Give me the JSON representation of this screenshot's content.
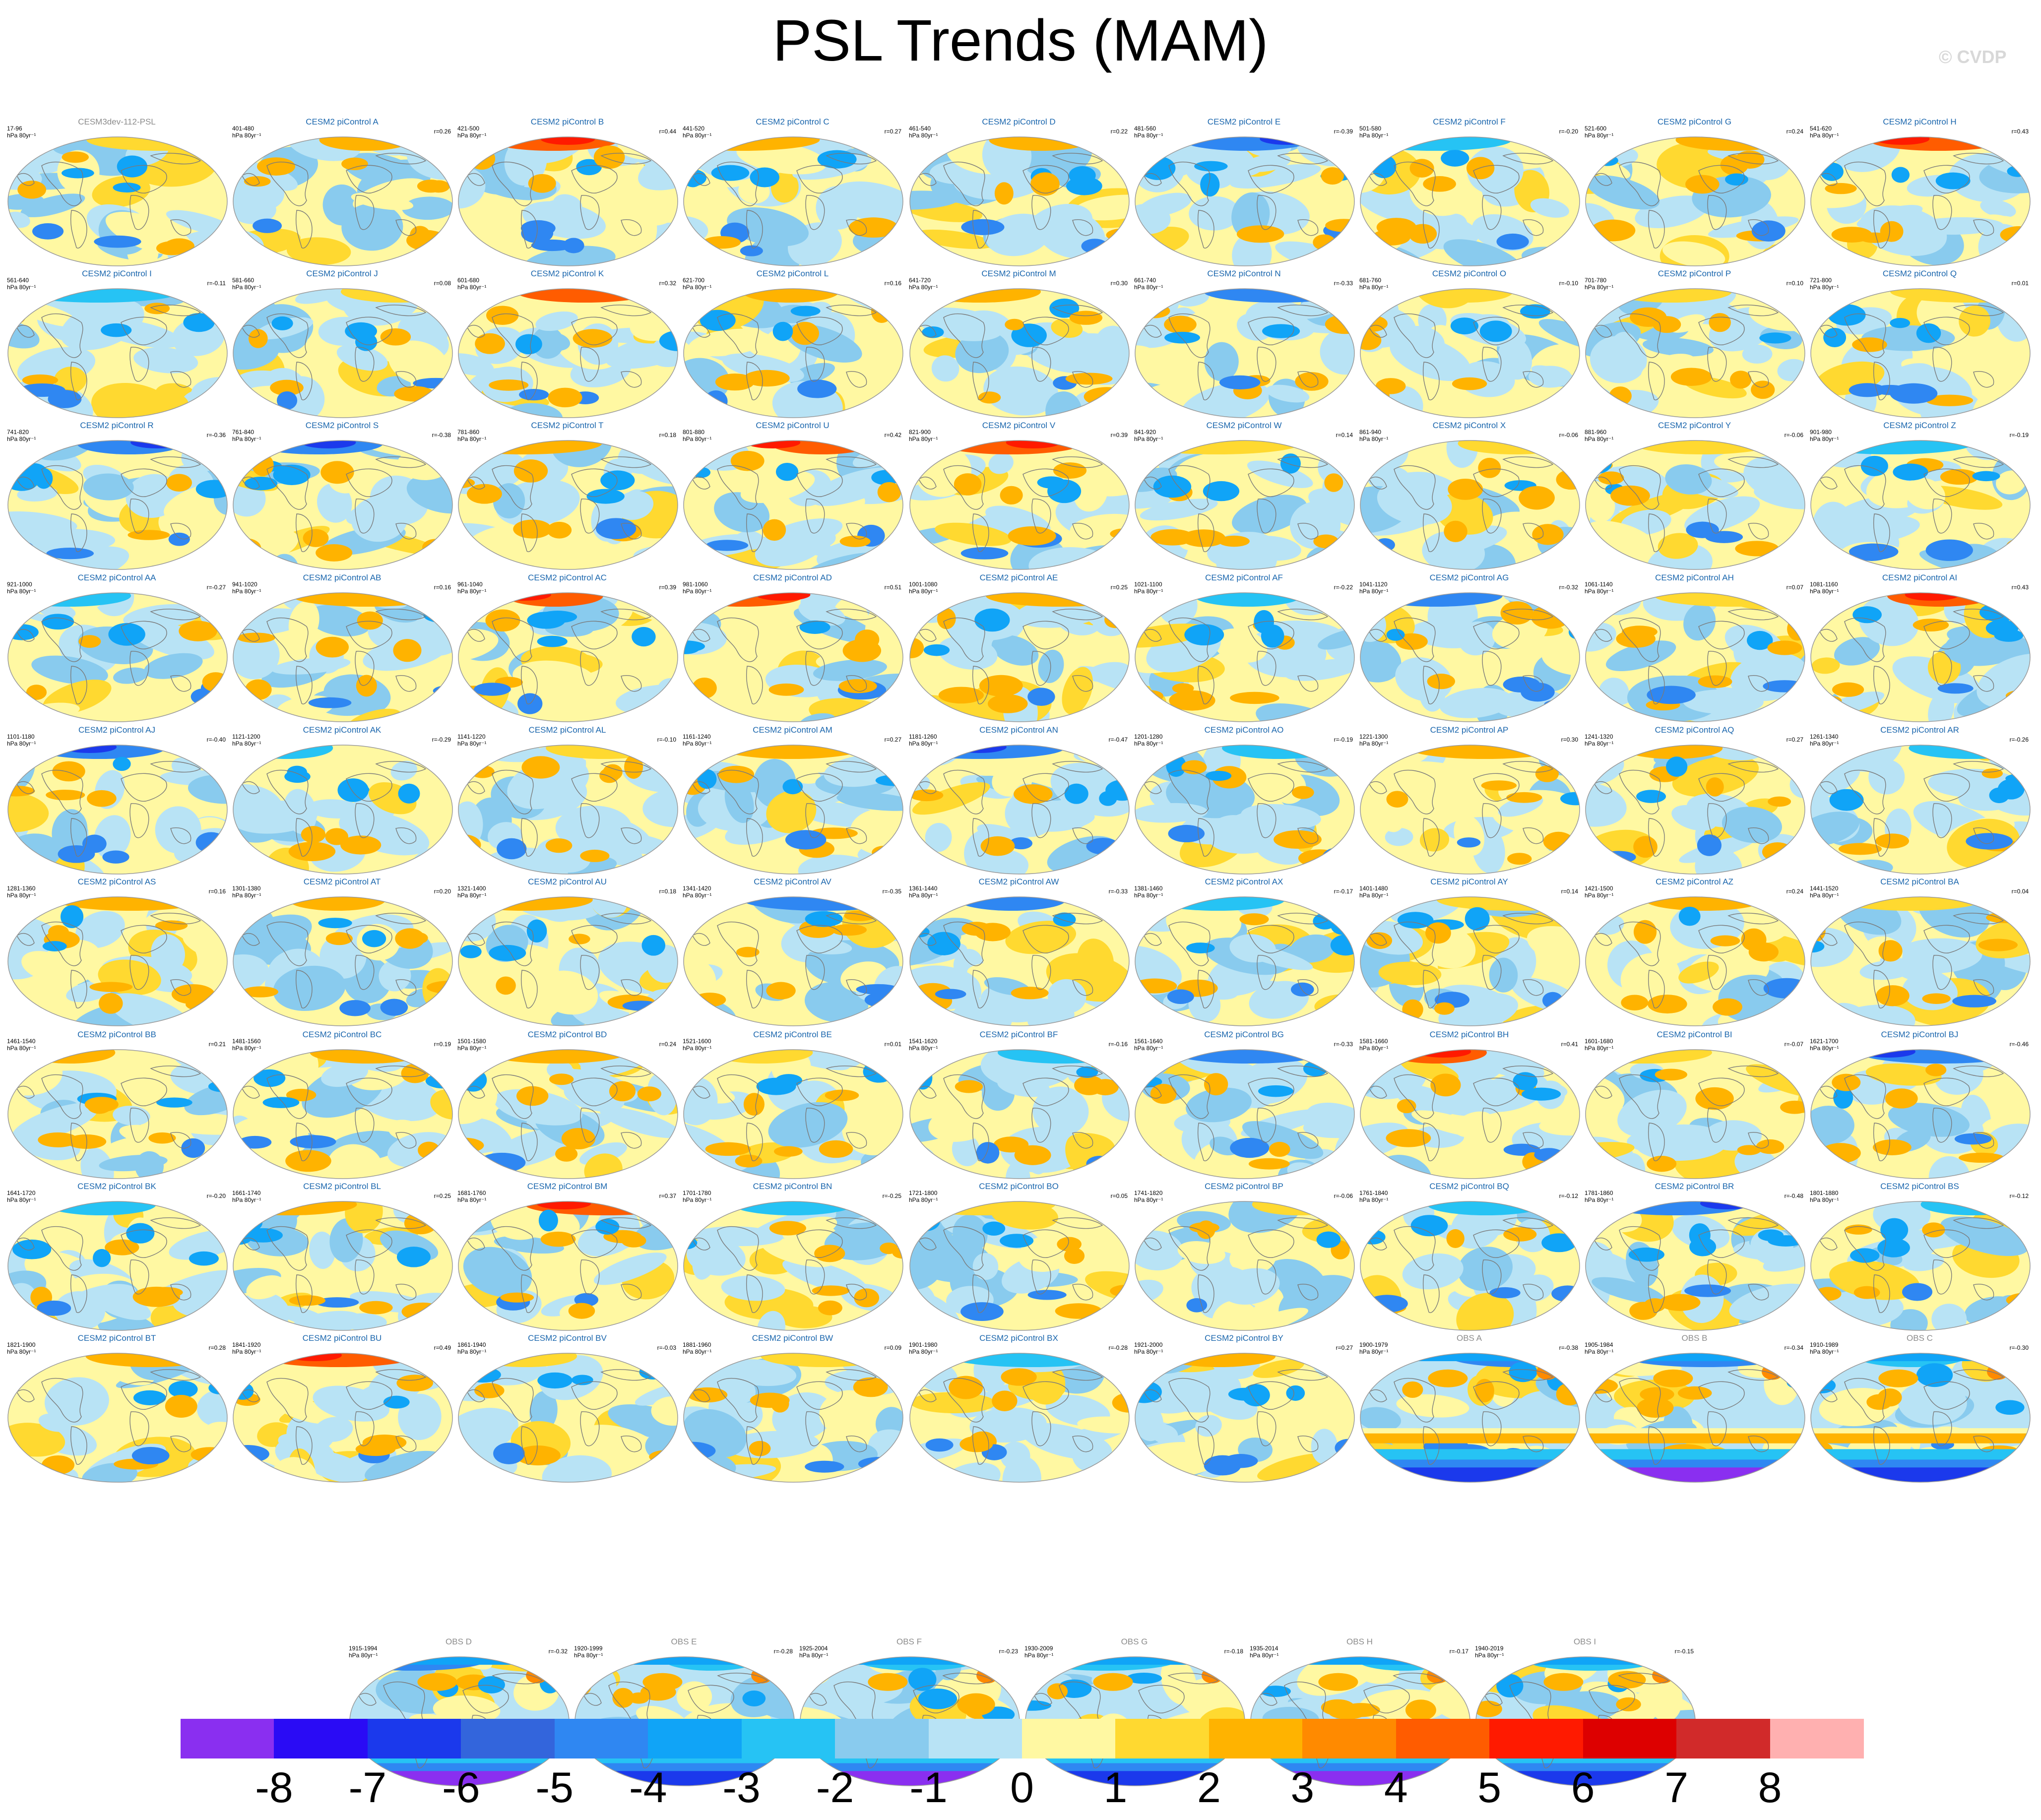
{
  "title": "PSL Trends (MAM)",
  "copyright": "© CVDP",
  "units_line": "hPa 80yr⁻¹",
  "chart_data": {
    "type": "heatmap",
    "title": "PSL Trends (MAM)",
    "panels": [
      {
        "name": "CESM3dev-112-PSL",
        "period": "17-96",
        "r": "",
        "obs": false
      },
      {
        "name": "CESM2 piControl A",
        "period": "401-480",
        "r": "r=0.26"
      },
      {
        "name": "CESM2 piControl B",
        "period": "421-500",
        "r": "r=0.44"
      },
      {
        "name": "CESM2 piControl C",
        "period": "441-520",
        "r": "r=0.27"
      },
      {
        "name": "CESM2 piControl D",
        "period": "461-540",
        "r": "r=0.22"
      },
      {
        "name": "CESM2 piControl E",
        "period": "481-560",
        "r": "r=-0.39"
      },
      {
        "name": "CESM2 piControl F",
        "period": "501-580",
        "r": "r=-0.20"
      },
      {
        "name": "CESM2 piControl G",
        "period": "521-600",
        "r": "r=0.24"
      },
      {
        "name": "CESM2 piControl H",
        "period": "541-620",
        "r": "r=0.43"
      },
      {
        "name": "CESM2 piControl I",
        "period": "561-640",
        "r": "r=-0.11"
      },
      {
        "name": "CESM2 piControl J",
        "period": "581-660",
        "r": "r=0.08"
      },
      {
        "name": "CESM2 piControl K",
        "period": "601-680",
        "r": "r=0.32"
      },
      {
        "name": "CESM2 piControl L",
        "period": "621-700",
        "r": "r=0.16"
      },
      {
        "name": "CESM2 piControl M",
        "period": "641-720",
        "r": "r=0.30"
      },
      {
        "name": "CESM2 piControl N",
        "period": "661-740",
        "r": "r=-0.33"
      },
      {
        "name": "CESM2 piControl O",
        "period": "681-760",
        "r": "r=-0.10"
      },
      {
        "name": "CESM2 piControl P",
        "period": "701-780",
        "r": "r=0.10"
      },
      {
        "name": "CESM2 piControl Q",
        "period": "721-800",
        "r": "r=0.01"
      },
      {
        "name": "CESM2 piControl R",
        "period": "741-820",
        "r": "r=-0.36"
      },
      {
        "name": "CESM2 piControl S",
        "period": "761-840",
        "r": "r=-0.38"
      },
      {
        "name": "CESM2 piControl T",
        "period": "781-860",
        "r": "r=0.18"
      },
      {
        "name": "CESM2 piControl U",
        "period": "801-880",
        "r": "r=0.42"
      },
      {
        "name": "CESM2 piControl V",
        "period": "821-900",
        "r": "r=0.39"
      },
      {
        "name": "CESM2 piControl W",
        "period": "841-920",
        "r": "r=0.14"
      },
      {
        "name": "CESM2 piControl X",
        "period": "861-940",
        "r": "r=-0.06"
      },
      {
        "name": "CESM2 piControl Y",
        "period": "881-960",
        "r": "r=-0.06"
      },
      {
        "name": "CESM2 piControl Z",
        "period": "901-980",
        "r": "r=-0.19"
      },
      {
        "name": "CESM2 piControl AA",
        "period": "921-1000",
        "r": "r=-0.27"
      },
      {
        "name": "CESM2 piControl AB",
        "period": "941-1020",
        "r": "r=0.16"
      },
      {
        "name": "CESM2 piControl AC",
        "period": "961-1040",
        "r": "r=0.39"
      },
      {
        "name": "CESM2 piControl AD",
        "period": "981-1060",
        "r": "r=0.51"
      },
      {
        "name": "CESM2 piControl AE",
        "period": "1001-1080",
        "r": "r=0.25"
      },
      {
        "name": "CESM2 piControl AF",
        "period": "1021-1100",
        "r": "r=-0.22"
      },
      {
        "name": "CESM2 piControl AG",
        "period": "1041-1120",
        "r": "r=-0.32"
      },
      {
        "name": "CESM2 piControl AH",
        "period": "1061-1140",
        "r": "r=0.07"
      },
      {
        "name": "CESM2 piControl AI",
        "period": "1081-1160",
        "r": "r=0.43"
      },
      {
        "name": "CESM2 piControl AJ",
        "period": "1101-1180",
        "r": "r=-0.40"
      },
      {
        "name": "CESM2 piControl AK",
        "period": "1121-1200",
        "r": "r=-0.29"
      },
      {
        "name": "CESM2 piControl AL",
        "period": "1141-1220",
        "r": "r=-0.10"
      },
      {
        "name": "CESM2 piControl AM",
        "period": "1161-1240",
        "r": "r=0.27"
      },
      {
        "name": "CESM2 piControl AN",
        "period": "1181-1260",
        "r": "r=-0.47"
      },
      {
        "name": "CESM2 piControl AO",
        "period": "1201-1280",
        "r": "r=-0.19"
      },
      {
        "name": "CESM2 piControl AP",
        "period": "1221-1300",
        "r": "r=0.30"
      },
      {
        "name": "CESM2 piControl AQ",
        "period": "1241-1320",
        "r": "r=0.27"
      },
      {
        "name": "CESM2 piControl AR",
        "period": "1261-1340",
        "r": "r=-0.26"
      },
      {
        "name": "CESM2 piControl AS",
        "period": "1281-1360",
        "r": "r=0.16"
      },
      {
        "name": "CESM2 piControl AT",
        "period": "1301-1380",
        "r": "r=0.20"
      },
      {
        "name": "CESM2 piControl AU",
        "period": "1321-1400",
        "r": "r=0.18"
      },
      {
        "name": "CESM2 piControl AV",
        "period": "1341-1420",
        "r": "r=-0.35"
      },
      {
        "name": "CESM2 piControl AW",
        "period": "1361-1440",
        "r": "r=-0.33"
      },
      {
        "name": "CESM2 piControl AX",
        "period": "1381-1460",
        "r": "r=-0.17"
      },
      {
        "name": "CESM2 piControl AY",
        "period": "1401-1480",
        "r": "r=0.14"
      },
      {
        "name": "CESM2 piControl AZ",
        "period": "1421-1500",
        "r": "r=0.24"
      },
      {
        "name": "CESM2 piControl BA",
        "period": "1441-1520",
        "r": "r=0.04"
      },
      {
        "name": "CESM2 piControl BB",
        "period": "1461-1540",
        "r": "r=0.21"
      },
      {
        "name": "CESM2 piControl BC",
        "period": "1481-1560",
        "r": "r=0.19"
      },
      {
        "name": "CESM2 piControl BD",
        "period": "1501-1580",
        "r": "r=0.24"
      },
      {
        "name": "CESM2 piControl BE",
        "period": "1521-1600",
        "r": "r=0.01"
      },
      {
        "name": "CESM2 piControl BF",
        "period": "1541-1620",
        "r": "r=-0.16"
      },
      {
        "name": "CESM2 piControl BG",
        "period": "1561-1640",
        "r": "r=-0.33"
      },
      {
        "name": "CESM2 piControl BH",
        "period": "1581-1660",
        "r": "r=0.41"
      },
      {
        "name": "CESM2 piControl BI",
        "period": "1601-1680",
        "r": "r=-0.07"
      },
      {
        "name": "CESM2 piControl BJ",
        "period": "1621-1700",
        "r": "r=-0.46"
      },
      {
        "name": "CESM2 piControl BK",
        "period": "1641-1720",
        "r": "r=-0.20"
      },
      {
        "name": "CESM2 piControl BL",
        "period": "1661-1740",
        "r": "r=0.25"
      },
      {
        "name": "CESM2 piControl BM",
        "period": "1681-1760",
        "r": "r=0.37"
      },
      {
        "name": "CESM2 piControl BN",
        "period": "1701-1780",
        "r": "r=-0.25"
      },
      {
        "name": "CESM2 piControl BO",
        "period": "1721-1800",
        "r": "r=0.05"
      },
      {
        "name": "CESM2 piControl BP",
        "period": "1741-1820",
        "r": "r=-0.06"
      },
      {
        "name": "CESM2 piControl BQ",
        "period": "1761-1840",
        "r": "r=-0.12"
      },
      {
        "name": "CESM2 piControl BR",
        "period": "1781-1860",
        "r": "r=-0.48"
      },
      {
        "name": "CESM2 piControl BS",
        "period": "1801-1880",
        "r": "r=-0.12"
      },
      {
        "name": "CESM2 piControl BT",
        "period": "1821-1900",
        "r": "r=0.28"
      },
      {
        "name": "CESM2 piControl BU",
        "period": "1841-1920",
        "r": "r=0.49"
      },
      {
        "name": "CESM2 piControl BV",
        "period": "1861-1940",
        "r": "r=-0.03"
      },
      {
        "name": "CESM2 piControl BW",
        "period": "1881-1960",
        "r": "r=0.09"
      },
      {
        "name": "CESM2 piControl BX",
        "period": "1901-1980",
        "r": "r=-0.28"
      },
      {
        "name": "CESM2 piControl BY",
        "period": "1921-2000",
        "r": "r=0.27"
      },
      {
        "name": "OBS A",
        "period": "1900-1979",
        "r": "r=-0.38",
        "obs": true
      },
      {
        "name": "OBS B",
        "period": "1905-1984",
        "r": "r=-0.34",
        "obs": true
      },
      {
        "name": "OBS C",
        "period": "1910-1989",
        "r": "r=-0.30",
        "obs": true
      },
      {
        "name": "OBS D",
        "period": "1915-1994",
        "r": "r=-0.32",
        "obs": true
      },
      {
        "name": "OBS E",
        "period": "1920-1999",
        "r": "r=-0.28",
        "obs": true
      },
      {
        "name": "OBS F",
        "period": "1925-2004",
        "r": "r=-0.23",
        "obs": true
      },
      {
        "name": "OBS G",
        "period": "1930-2009",
        "r": "r=-0.18",
        "obs": true
      },
      {
        "name": "OBS H",
        "period": "1935-2014",
        "r": "r=-0.17",
        "obs": true
      },
      {
        "name": "OBS I",
        "period": "1940-2019",
        "r": "r=-0.15",
        "obs": true
      }
    ],
    "colorbar": {
      "colors": [
        "#8a2ff0",
        "#2a0bf5",
        "#1b39ec",
        "#3365dc",
        "#2f87f2",
        "#10a4f7",
        "#26c3f4",
        "#89cbee",
        "#b8e3f5",
        "#fff8a2",
        "#ffd930",
        "#ffb300",
        "#ff8a00",
        "#ff5c00",
        "#ff1a00",
        "#dd0000",
        "#d12a2a",
        "#ffb0b0"
      ],
      "tick_labels": [
        "-8",
        "-7",
        "-6",
        "-5",
        "-4",
        "-3",
        "-2",
        "-1",
        "0",
        "1",
        "2",
        "3",
        "4",
        "5",
        "6",
        "7",
        "8"
      ]
    }
  }
}
